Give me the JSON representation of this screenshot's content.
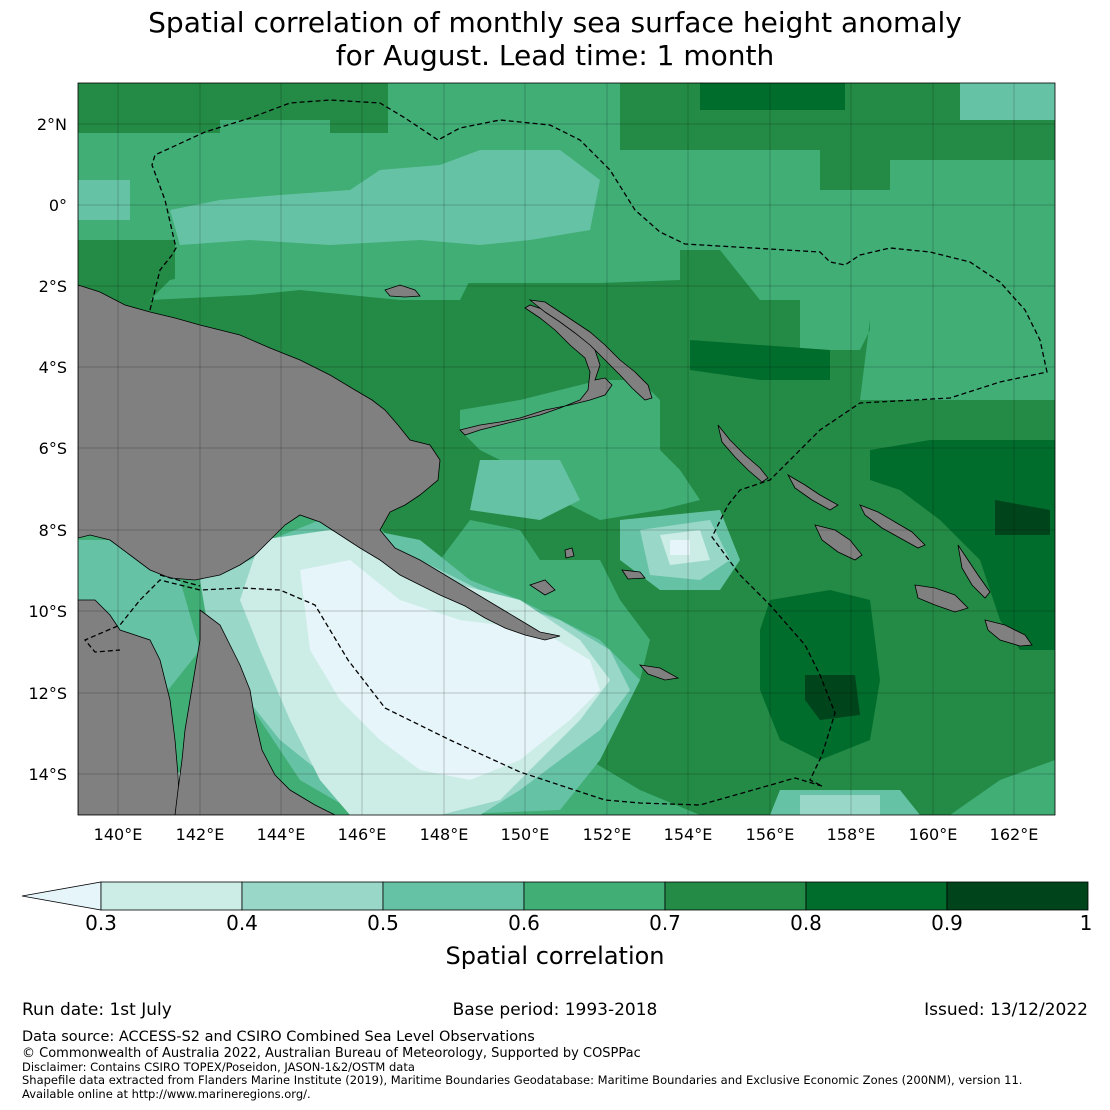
{
  "title": {
    "line1": "Spatial correlation of monthly sea surface height anomaly",
    "line2": "for August. Lead time: 1 month"
  },
  "map": {
    "lat_labels": [
      "2°N",
      "0°",
      "2°S",
      "4°S",
      "6°S",
      "8°S",
      "10°S",
      "12°S",
      "14°S"
    ],
    "lon_labels": [
      "140°E",
      "142°E",
      "144°E",
      "146°E",
      "148°E",
      "150°E",
      "152°E",
      "154°E",
      "156°E",
      "158°E",
      "160°E",
      "162°E"
    ],
    "lon_range": [
      139,
      163
    ],
    "lat_range": [
      -15,
      3
    ],
    "land_color": "#808080"
  },
  "colorbar": {
    "title": "Spatial correlation",
    "tick_labels": [
      "0.3",
      "0.4",
      "0.5",
      "0.6",
      "0.7",
      "0.8",
      "0.9",
      "1"
    ],
    "colors": {
      "below_0.3": "#e5f5f9",
      "0.3-0.4": "#ccece6",
      "0.4-0.5": "#99d8c9",
      "0.5-0.6": "#66c2a4",
      "0.6-0.7": "#41ae76",
      "0.7-0.8": "#238b45",
      "0.8-0.9": "#006d2c",
      "0.9-1": "#00441b"
    }
  },
  "footer": {
    "run_date": "Run date: 1st July",
    "base_period": "Base period: 1993-2018",
    "issued": "Issued: 13/12/2022",
    "data_source": "Data source: ACCESS-S2 and CSIRO Combined Sea Level Observations",
    "copyright": "© Commonwealth of Australia 2022, Australian Bureau of Meteorology, Supported by COSPPac",
    "disclaimer": "Disclaimer: Contains CSIRO TOPEX/Poseidon, JASON-1&2/OSTM data",
    "shapefile": "Shapefile data extracted from Flanders Marine Institute (2019), Maritime Boundaries Geodatabase: Maritime Boundaries and Exclusive Economic Zones (200NM), version 11.",
    "available": "Available online at http://www.marineregions.org/."
  }
}
